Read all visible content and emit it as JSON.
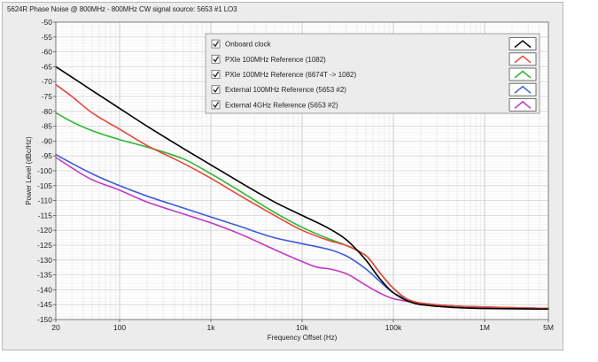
{
  "window": {
    "title": "5624R Phase Noise @ 800MHz - 800MHz CW signal source: 5653 #1 LO3"
  },
  "chart_data": {
    "type": "line",
    "title": "5624R Phase Noise @ 800MHz - 800MHz CW signal source: 5653 #1 LO3",
    "xlabel": "Frequency Offset (Hz)",
    "ylabel": "Power Level (dBc/Hz)",
    "xscale": "log",
    "xlim": [
      20,
      5000000
    ],
    "ylim": [
      -150,
      -50
    ],
    "x_ticks": [
      20,
      100,
      1000,
      10000,
      100000,
      1000000,
      5000000
    ],
    "x_tick_labels": [
      "20",
      "100",
      "1k",
      "10k",
      "100k",
      "1M",
      "5M"
    ],
    "y_ticks": [
      -50,
      -55,
      -60,
      -65,
      -70,
      -75,
      -80,
      -85,
      -90,
      -95,
      -100,
      -105,
      -110,
      -115,
      -120,
      -125,
      -130,
      -135,
      -140,
      -145,
      -150
    ],
    "y_tick_labels": [
      "-50",
      "-55",
      "-60",
      "-65",
      "-70",
      "-75",
      "-80",
      "-85",
      "-90",
      "-95",
      "-100",
      "-105",
      "-110",
      "-115",
      "-120",
      "-125",
      "-130",
      "-135",
      "-140",
      "-145",
      "-150"
    ],
    "grid": true,
    "legend_position": "top-right",
    "series": [
      {
        "name": "Onboard clock",
        "color": "#000000",
        "checked": true,
        "points": [
          [
            20,
            -65
          ],
          [
            30,
            -68.5
          ],
          [
            50,
            -73
          ],
          [
            100,
            -79
          ],
          [
            200,
            -85
          ],
          [
            500,
            -92.5
          ],
          [
            1000,
            -98
          ],
          [
            2000,
            -103.5
          ],
          [
            5000,
            -110.5
          ],
          [
            10000,
            -115
          ],
          [
            20000,
            -119.5
          ],
          [
            30000,
            -123
          ],
          [
            50000,
            -130
          ],
          [
            70000,
            -136
          ],
          [
            100000,
            -141
          ],
          [
            150000,
            -144
          ],
          [
            200000,
            -145
          ],
          [
            500000,
            -146
          ],
          [
            1000000,
            -146.3
          ],
          [
            5000000,
            -146.5
          ]
        ]
      },
      {
        "name": "PXIe 100MHz Reference (1082)",
        "color": "#e8453c",
        "checked": true,
        "points": [
          [
            20,
            -71
          ],
          [
            30,
            -75
          ],
          [
            50,
            -80.5
          ],
          [
            100,
            -86
          ],
          [
            200,
            -91.5
          ],
          [
            500,
            -97.5
          ],
          [
            1000,
            -102.5
          ],
          [
            2000,
            -108
          ],
          [
            5000,
            -115
          ],
          [
            10000,
            -120
          ],
          [
            20000,
            -123.5
          ],
          [
            30000,
            -125
          ],
          [
            50000,
            -128.5
          ],
          [
            70000,
            -134
          ],
          [
            100000,
            -139.5
          ],
          [
            150000,
            -143.5
          ],
          [
            200000,
            -144.5
          ],
          [
            500000,
            -145.5
          ],
          [
            1000000,
            -145.8
          ],
          [
            5000000,
            -146.3
          ]
        ]
      },
      {
        "name": "PXIe 100MHz Reference (6674T -> 1082)",
        "color": "#2db82d",
        "checked": true,
        "points": [
          [
            20,
            -80.5
          ],
          [
            30,
            -83.5
          ],
          [
            50,
            -86.5
          ],
          [
            100,
            -89.5
          ],
          [
            200,
            -92
          ],
          [
            500,
            -96
          ],
          [
            1000,
            -101
          ],
          [
            2000,
            -106.5
          ],
          [
            5000,
            -114
          ],
          [
            10000,
            -119
          ],
          [
            20000,
            -123
          ],
          [
            30000,
            -125
          ],
          [
            50000,
            -128.5
          ],
          [
            70000,
            -134
          ],
          [
            100000,
            -139.5
          ],
          [
            150000,
            -143.5
          ],
          [
            200000,
            -144.5
          ],
          [
            500000,
            -145.5
          ],
          [
            1000000,
            -145.8
          ],
          [
            5000000,
            -146.3
          ]
        ]
      },
      {
        "name": "External 100MHz Reference (5653 #2)",
        "color": "#3d5bd9",
        "checked": true,
        "points": [
          [
            20,
            -94.5
          ],
          [
            30,
            -97.5
          ],
          [
            50,
            -101
          ],
          [
            100,
            -105
          ],
          [
            200,
            -108.5
          ],
          [
            500,
            -112.5
          ],
          [
            1000,
            -115.5
          ],
          [
            2000,
            -118.5
          ],
          [
            5000,
            -122.5
          ],
          [
            10000,
            -124.5
          ],
          [
            20000,
            -126.5
          ],
          [
            30000,
            -128.5
          ],
          [
            50000,
            -133
          ],
          [
            70000,
            -137
          ],
          [
            100000,
            -141
          ],
          [
            150000,
            -143.5
          ],
          [
            200000,
            -144.5
          ],
          [
            500000,
            -145.5
          ],
          [
            1000000,
            -145.8
          ],
          [
            5000000,
            -146.3
          ]
        ]
      },
      {
        "name": "External 4GHz Reference (5653 #2)",
        "color": "#c238c2",
        "checked": true,
        "points": [
          [
            20,
            -95.5
          ],
          [
            30,
            -99
          ],
          [
            50,
            -103
          ],
          [
            100,
            -106.5
          ],
          [
            200,
            -110.5
          ],
          [
            500,
            -114.5
          ],
          [
            1000,
            -117.5
          ],
          [
            2000,
            -121
          ],
          [
            5000,
            -126.5
          ],
          [
            10000,
            -130.5
          ],
          [
            15000,
            -132.5
          ],
          [
            20000,
            -133
          ],
          [
            30000,
            -134.5
          ],
          [
            50000,
            -138.5
          ],
          [
            70000,
            -141
          ],
          [
            100000,
            -143
          ],
          [
            200000,
            -144.5
          ],
          [
            500000,
            -145.5
          ],
          [
            1000000,
            -145.8
          ],
          [
            5000000,
            -146.3
          ]
        ]
      }
    ]
  }
}
